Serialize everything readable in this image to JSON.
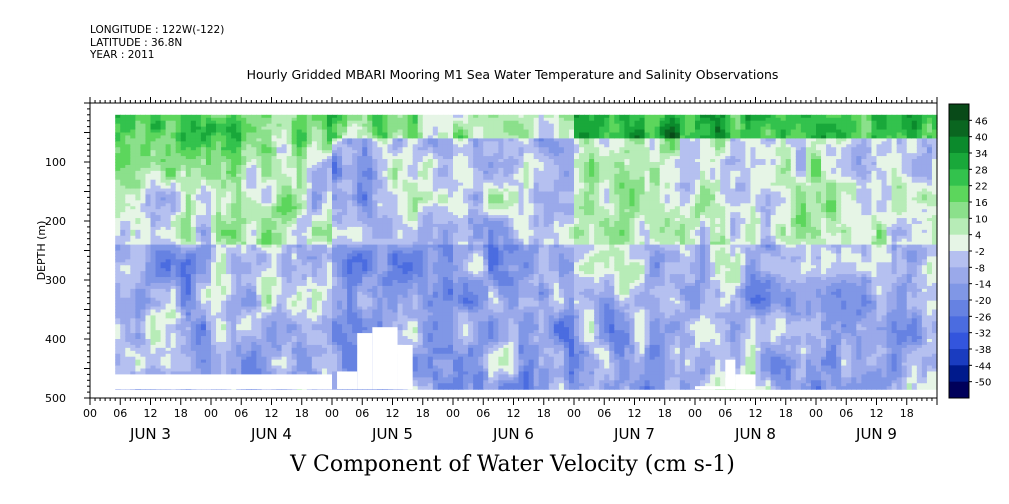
{
  "header": {
    "longitude": "LONGITUDE : 122W(-122)",
    "latitude": "LATITUDE : 36.8N",
    "year": "YEAR : 2011"
  },
  "title": "Hourly Gridded MBARI Mooring M1 Sea Water Temperature and Salinity Observations",
  "subtitle": "V Component of Water Velocity (cm s-1)",
  "chart_data": {
    "type": "heatmap",
    "title": "Hourly Gridded MBARI Mooring M1 Sea Water Temperature and Salinity Observations",
    "subtitle": "V Component of Water Velocity (cm s-1)",
    "ylabel": "DEPTH (m)",
    "xlabel": "",
    "x_range_hours": [
      0,
      168
    ],
    "y_range": [
      0,
      500
    ],
    "y_reversed": true,
    "y_ticks": [
      100,
      200,
      300,
      400,
      500
    ],
    "x_hour_tick_labels": [
      "00",
      "06",
      "12",
      "18"
    ],
    "day_labels": [
      "JUN  3",
      "JUN  4",
      "JUN  5",
      "JUN  6",
      "JUN  7",
      "JUN  8",
      "JUN  9"
    ],
    "data_start_hour": 5,
    "data_depth_range": [
      20,
      485
    ],
    "colorbar": {
      "levels": [
        -50,
        -44,
        -38,
        -32,
        -26,
        -20,
        -14,
        -8,
        -2,
        4,
        10,
        16,
        22,
        28,
        34,
        40,
        46
      ],
      "labels": [
        "46",
        "40",
        "34",
        "28",
        "22",
        "16",
        "10",
        "4",
        "-2",
        "-8",
        "-14",
        "-20",
        "-26",
        "-32",
        "-38",
        "-44",
        "-50"
      ],
      "colors": [
        "#00005a",
        "#001a8c",
        "#1a3cc0",
        "#3355dd",
        "#4b6ce0",
        "#6682e2",
        "#8097e6",
        "#9aa9ea",
        "#b5c0f0",
        "#e6f5e6",
        "#b7ecb7",
        "#8be08b",
        "#5cd65c",
        "#33c24d",
        "#19a83a",
        "#0b8a2c",
        "#0a6620",
        "#084a18"
      ],
      "tick_positions": [
        "top-right"
      ]
    },
    "pattern_summary": {
      "upper_layer_depth_m": [
        20,
        240
      ],
      "upper_layer_sign": "positive",
      "lower_layer_sign": "negative",
      "strongest_positive_near_surface_hours": [
        96,
        168
      ]
    }
  }
}
